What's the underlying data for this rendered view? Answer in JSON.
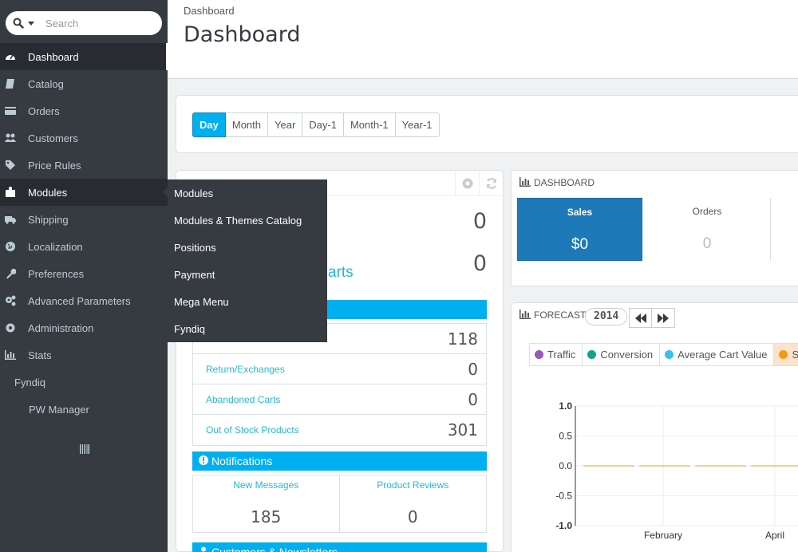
{
  "search": {
    "placeholder": "Search"
  },
  "sidebar": {
    "items": [
      {
        "label": "Dashboard"
      },
      {
        "label": "Catalog"
      },
      {
        "label": "Orders"
      },
      {
        "label": "Customers"
      },
      {
        "label": "Price Rules"
      },
      {
        "label": "Modules"
      },
      {
        "label": "Shipping"
      },
      {
        "label": "Localization"
      },
      {
        "label": "Preferences"
      },
      {
        "label": "Advanced Parameters"
      },
      {
        "label": "Administration"
      },
      {
        "label": "Stats"
      }
    ],
    "extra": [
      {
        "label": "Fyndiq"
      },
      {
        "label": "PW Manager"
      }
    ]
  },
  "flyout": {
    "items": [
      {
        "label": "Modules"
      },
      {
        "label": "Modules & Themes Catalog"
      },
      {
        "label": "Positions"
      },
      {
        "label": "Payment"
      },
      {
        "label": "Mega Menu"
      },
      {
        "label": "Fyndiq"
      }
    ]
  },
  "header": {
    "breadcrumb": "Dashboard",
    "title": "Dashboard"
  },
  "period": {
    "buttons": [
      "Day",
      "Month",
      "Year",
      "Day-1",
      "Month-1",
      "Year-1"
    ],
    "active": "Day"
  },
  "activity": {
    "value1": "0",
    "abandoned_label": "arts",
    "value2": "0",
    "rows": [
      {
        "label": "",
        "value": "118"
      },
      {
        "label": "Return/Exchanges",
        "value": "0"
      },
      {
        "label": "Abandoned Carts",
        "value": "0"
      },
      {
        "label": "Out of Stock Products",
        "value": "301"
      }
    ],
    "notifications_title": "Notifications",
    "notifications": [
      {
        "label": "New Messages",
        "value": "185"
      },
      {
        "label": "Product Reviews",
        "value": "0"
      }
    ],
    "customers_title": "Customers & Newsletters"
  },
  "dashboard": {
    "title": "DASHBOARD",
    "kpis": [
      {
        "label": "Sales",
        "value": "$0"
      },
      {
        "label": "Orders",
        "value": "0"
      }
    ]
  },
  "forecast": {
    "title": "FORECAST",
    "year": "2014",
    "legend": [
      {
        "label": "Traffic",
        "color": "#9b59b6"
      },
      {
        "label": "Conversion",
        "color": "#16a085"
      },
      {
        "label": "Average Cart Value",
        "color": "#3bc1e8"
      },
      {
        "label": "Sa",
        "color": "#f39c12"
      }
    ]
  },
  "chart_data": {
    "type": "line",
    "x": [
      "February",
      "April"
    ],
    "series": [
      {
        "values": [
          0,
          0
        ]
      }
    ],
    "yticks": [
      "1.0",
      "0.5",
      "0.0",
      "-0.5",
      "-1.0"
    ],
    "ylim": [
      -1,
      1
    ],
    "line_color": "#f39c12",
    "grid": true
  }
}
